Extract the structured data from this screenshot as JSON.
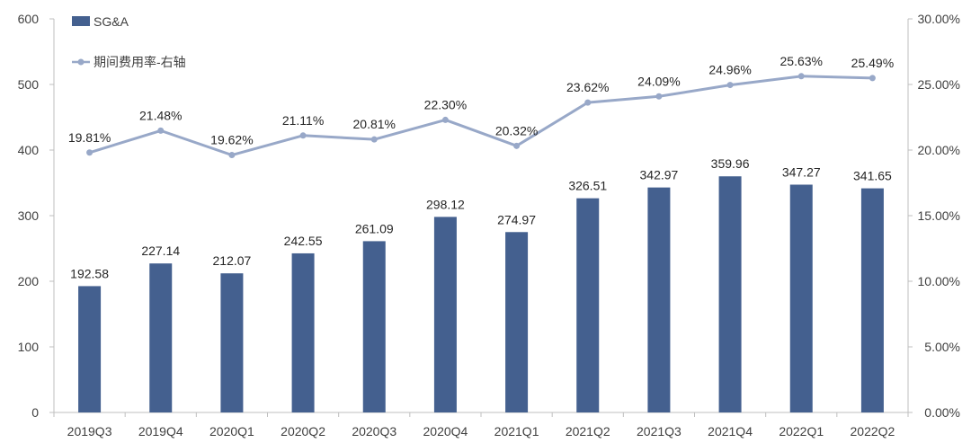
{
  "chart_data": {
    "type": "bar",
    "categories": [
      "2019Q3",
      "2019Q4",
      "2020Q1",
      "2020Q2",
      "2020Q3",
      "2020Q4",
      "2021Q1",
      "2021Q2",
      "2021Q3",
      "2021Q4",
      "2022Q1",
      "2022Q2"
    ],
    "series": [
      {
        "name": "SG&A",
        "type": "bar",
        "axis": "left",
        "color": "#44608f",
        "values": [
          192.58,
          227.14,
          212.07,
          242.55,
          261.09,
          298.12,
          274.97,
          326.51,
          342.97,
          359.96,
          347.27,
          341.65
        ],
        "labels": [
          "192.58",
          "227.14",
          "212.07",
          "242.55",
          "261.09",
          "298.12",
          "274.97",
          "326.51",
          "342.97",
          "359.96",
          "347.27",
          "341.65"
        ]
      },
      {
        "name": "期间费用率-右轴",
        "type": "line",
        "axis": "right",
        "color": "#98a8c8",
        "values": [
          19.81,
          21.48,
          19.62,
          21.11,
          20.81,
          22.3,
          20.32,
          23.62,
          24.09,
          24.96,
          25.63,
          25.49
        ],
        "labels": [
          "19.81%",
          "21.48%",
          "19.62%",
          "21.11%",
          "20.81%",
          "22.30%",
          "20.32%",
          "23.62%",
          "24.09%",
          "24.96%",
          "25.63%",
          "25.49%"
        ]
      }
    ],
    "y_left": {
      "lim": [
        0,
        600
      ],
      "ticks": [
        0,
        100,
        200,
        300,
        400,
        500,
        600
      ],
      "tick_labels": [
        "0",
        "100",
        "200",
        "300",
        "400",
        "500",
        "600"
      ]
    },
    "y_right": {
      "lim": [
        0,
        30
      ],
      "ticks": [
        0,
        5,
        10,
        15,
        20,
        25,
        30
      ],
      "tick_labels": [
        "0.00%",
        "5.00%",
        "10.00%",
        "15.00%",
        "20.00%",
        "25.00%",
        "30.00%"
      ]
    },
    "grid": false,
    "legend_position": "top-left"
  }
}
